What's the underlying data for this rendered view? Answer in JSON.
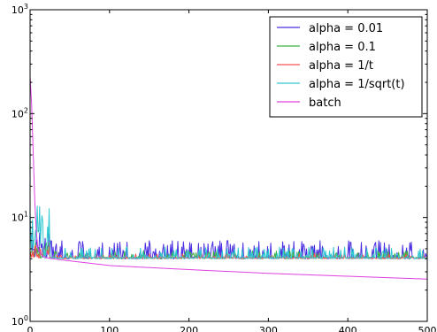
{
  "chart_data": {
    "type": "line",
    "title": "",
    "xlabel": "",
    "ylabel": "",
    "xlim": [
      0,
      500
    ],
    "ylim": [
      1,
      1000
    ],
    "yscale": "log",
    "grid": false,
    "legend_position": "top-right",
    "x_ticks": [
      "0",
      "100",
      "200",
      "300",
      "400",
      "500"
    ],
    "y_ticks": [
      {
        "base": "10",
        "exp": "0"
      },
      {
        "base": "10",
        "exp": "1"
      },
      {
        "base": "10",
        "exp": "2"
      },
      {
        "base": "10",
        "exp": "3"
      }
    ],
    "series": [
      {
        "name": "alpha = 0.01",
        "color": "#4b2fe0",
        "style": "noisy",
        "baseline": 4.0,
        "spike_max": 6.0,
        "spike_prob": 0.35,
        "early_max": 7.5
      },
      {
        "name": "alpha = 0.1",
        "color": "#3cb043",
        "style": "noisy",
        "baseline": 4.0,
        "spike_max": 4.8,
        "spike_prob": 0.25,
        "early_max": 6.0
      },
      {
        "name": "alpha = 1/t",
        "color": "#ff5050",
        "style": "noisy",
        "baseline": 4.0,
        "spike_max": 4.5,
        "spike_prob": 0.2,
        "early_max": 5.5
      },
      {
        "name": "alpha = 1/sqrt(t)",
        "color": "#30c8d0",
        "style": "noisy",
        "baseline": 4.0,
        "spike_max": 5.2,
        "spike_prob": 0.3,
        "early_max": 13.0
      },
      {
        "name": "batch",
        "color": "#e040e0",
        "style": "smooth",
        "points": [
          [
            0,
            230
          ],
          [
            2,
            120
          ],
          [
            4,
            40
          ],
          [
            6,
            14
          ],
          [
            8,
            7
          ],
          [
            10,
            5
          ],
          [
            15,
            4.3
          ],
          [
            20,
            4.1
          ],
          [
            40,
            3.9
          ],
          [
            100,
            3.45
          ],
          [
            200,
            3.15
          ],
          [
            300,
            2.9
          ],
          [
            400,
            2.72
          ],
          [
            500,
            2.55
          ]
        ]
      }
    ]
  }
}
